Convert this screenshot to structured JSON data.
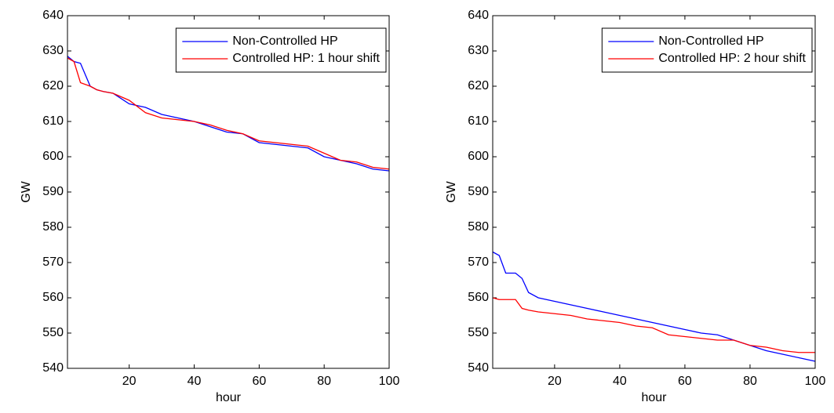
{
  "chart_data": [
    {
      "type": "line",
      "xlabel": "hour",
      "ylabel": "GW",
      "x": [
        1,
        3,
        5,
        8,
        10,
        12,
        15,
        20,
        25,
        30,
        35,
        40,
        45,
        50,
        55,
        60,
        65,
        70,
        75,
        80,
        85,
        90,
        95,
        100
      ],
      "xlim": [
        1,
        100
      ],
      "xticks": [
        20,
        40,
        60,
        80,
        100
      ],
      "ylim": [
        540,
        640
      ],
      "yticks": [
        540,
        550,
        560,
        570,
        580,
        590,
        600,
        610,
        620,
        630,
        640
      ],
      "legend": "upper right",
      "series": [
        {
          "name": "Non-Controlled HP",
          "color": "#0000ff",
          "values": [
            628.5,
            627,
            626.5,
            620,
            619,
            618.5,
            618,
            615,
            614,
            612,
            611,
            610,
            608.5,
            607,
            606.5,
            604,
            603.5,
            603,
            602.5,
            600,
            599,
            598,
            596.5,
            596
          ]
        },
        {
          "name": "Controlled HP: 1 hour shift",
          "color": "#ff0000",
          "values": [
            628,
            627,
            621,
            620,
            619,
            618.5,
            618,
            616,
            612.5,
            611,
            610.5,
            610,
            609,
            607.5,
            606.5,
            604.5,
            604,
            603.5,
            603,
            601,
            599,
            598.5,
            597,
            596.5
          ]
        }
      ]
    },
    {
      "type": "line",
      "xlabel": "hour",
      "ylabel": "GW",
      "x": [
        1,
        3,
        5,
        8,
        10,
        12,
        15,
        20,
        25,
        30,
        35,
        40,
        45,
        50,
        55,
        60,
        65,
        70,
        75,
        80,
        85,
        90,
        95,
        100
      ],
      "xlim": [
        1,
        100
      ],
      "xticks": [
        20,
        40,
        60,
        80,
        100
      ],
      "ylim": [
        540,
        640
      ],
      "yticks": [
        540,
        550,
        560,
        570,
        580,
        590,
        600,
        610,
        620,
        630,
        640
      ],
      "legend": "upper right",
      "series": [
        {
          "name": "Non-Controlled HP",
          "color": "#0000ff",
          "values": [
            573,
            572,
            567,
            567,
            565.5,
            561.5,
            560,
            559,
            558,
            557,
            556,
            555,
            554,
            553,
            552,
            551,
            550,
            549.5,
            548,
            546.5,
            545,
            544,
            543,
            542
          ]
        },
        {
          "name": "Controlled HP: 2 hour shift",
          "color": "#ff0000",
          "values": [
            560,
            559.5,
            559.5,
            559.5,
            557,
            556.5,
            556,
            555.5,
            555,
            554,
            553.5,
            553,
            552,
            551.5,
            549.5,
            549,
            548.5,
            548,
            548,
            546.5,
            546,
            545,
            544.5,
            544.5
          ]
        }
      ]
    }
  ]
}
